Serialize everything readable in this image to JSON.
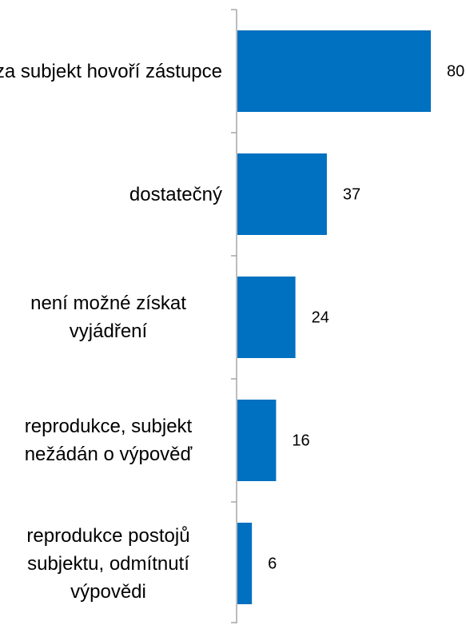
{
  "chart_data": {
    "type": "bar",
    "orientation": "horizontal",
    "categories": [
      "za subjekt hovoří zástupce",
      "dostatečný",
      "není možné získat vyjádření",
      "reprodukce, subjekt nežádán o výpověď",
      "reprodukce postojů subjektu, odmítnutí výpovědi"
    ],
    "values": [
      80,
      37,
      24,
      16,
      6
    ],
    "color": "#0070c0"
  }
}
